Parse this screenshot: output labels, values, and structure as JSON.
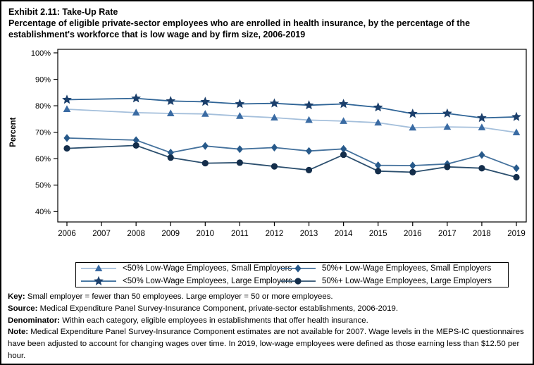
{
  "title": {
    "line1": "Exhibit 2.11: Take-Up Rate",
    "line2": "Percentage of eligible private-sector employees who are enrolled in health insurance, by the percentage of the establishment's workforce that is low wage and by firm size, 2006-2019"
  },
  "chart_data": {
    "type": "line",
    "x": [
      2006,
      2008,
      2009,
      2010,
      2011,
      2012,
      2013,
      2014,
      2015,
      2016,
      2017,
      2018,
      2019
    ],
    "x_axis_ticks": [
      2006,
      2007,
      2008,
      2009,
      2010,
      2011,
      2012,
      2013,
      2014,
      2015,
      2016,
      2017,
      2018,
      2019
    ],
    "y_ticks": [
      100,
      90,
      80,
      70,
      60,
      50,
      40
    ],
    "y_tick_suffix": "%",
    "ylim": [
      40,
      100
    ],
    "ylabel": "Percent",
    "xlabel": "",
    "grid": false,
    "legend_position": "bottom-boxed",
    "note": "No estimates for 2007; lines connect 2006 directly to 2008",
    "series": [
      {
        "name": "<50% Low-Wage Employees, Small Employers",
        "marker": "triangle",
        "marker_color": "#3a6ba3",
        "line_color": "#a4bfdb",
        "values": [
          78.7,
          77.4,
          77.1,
          76.9,
          76.1,
          75.5,
          74.6,
          74.2,
          73.6,
          71.7,
          72.0,
          71.8,
          69.9
        ]
      },
      {
        "name": "<50% Low-Wage Employees, Large Employers",
        "marker": "star",
        "marker_color": "#1b3f6b",
        "line_color": "#2f6496",
        "values": [
          82.3,
          82.8,
          81.8,
          81.5,
          80.7,
          80.9,
          80.2,
          80.7,
          79.4,
          77.0,
          77.1,
          75.4,
          75.8
        ]
      },
      {
        "name": "50%+ Low-Wage Employees, Small Employers",
        "marker": "diamond",
        "marker_color": "#27598a",
        "line_color": "#44719c",
        "values": [
          67.8,
          67.0,
          62.3,
          64.8,
          63.6,
          64.2,
          62.9,
          63.7,
          57.5,
          57.4,
          58.0,
          61.4,
          56.4
        ]
      },
      {
        "name": "50%+ Low-Wage Employees, Large Employers",
        "marker": "circle",
        "marker_color": "#142e4b",
        "line_color": "#2c4f6e",
        "values": [
          63.9,
          65.0,
          60.4,
          58.3,
          58.5,
          57.1,
          55.7,
          61.5,
          55.3,
          54.9,
          56.9,
          56.4,
          53.0
        ]
      }
    ]
  },
  "legend_display_order": [
    0,
    2,
    1,
    3
  ],
  "footer": {
    "key_label": "Key:",
    "key_text": "Small employer = fewer than 50 employees. Large employer = 50 or more employees.",
    "source_label": "Source:",
    "source_text": "Medical Expenditure Panel Survey-Insurance Component, private-sector establishments, 2006-2019.",
    "denominator_label": "Denominator:",
    "denominator_text": "Within each category, eligible employees in establishments that offer health insurance.",
    "note_label": "Note:",
    "note_text": "Medical Expenditure Panel Survey-Insurance Component estimates are not available for 2007. Wage levels in the MEPS-IC questionnaires have been adjusted to account for changing wages over time. In 2019, low-wage employees were defined as those earning less than $12.50 per hour."
  }
}
